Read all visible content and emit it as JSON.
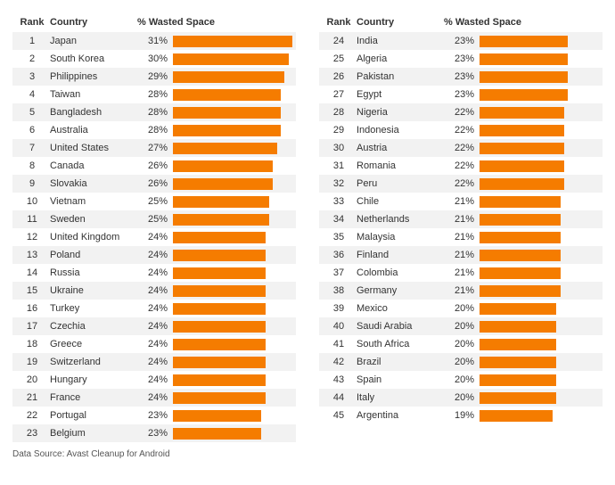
{
  "columns": {
    "rank": "Rank",
    "country": "Country",
    "pct": "% Wasted Space"
  },
  "bar_color": "#f57c00",
  "stripe_color": "#f2f2f2",
  "bar_max": 31,
  "left": [
    {
      "rank": 1,
      "country": "Japan",
      "pct": 31
    },
    {
      "rank": 2,
      "country": "South Korea",
      "pct": 30
    },
    {
      "rank": 3,
      "country": "Philippines",
      "pct": 29
    },
    {
      "rank": 4,
      "country": "Taiwan",
      "pct": 28
    },
    {
      "rank": 5,
      "country": "Bangladesh",
      "pct": 28
    },
    {
      "rank": 6,
      "country": "Australia",
      "pct": 28
    },
    {
      "rank": 7,
      "country": "United States",
      "pct": 27
    },
    {
      "rank": 8,
      "country": "Canada",
      "pct": 26
    },
    {
      "rank": 9,
      "country": "Slovakia",
      "pct": 26
    },
    {
      "rank": 10,
      "country": "Vietnam",
      "pct": 25
    },
    {
      "rank": 11,
      "country": "Sweden",
      "pct": 25
    },
    {
      "rank": 12,
      "country": "United Kingdom",
      "pct": 24
    },
    {
      "rank": 13,
      "country": "Poland",
      "pct": 24
    },
    {
      "rank": 14,
      "country": "Russia",
      "pct": 24
    },
    {
      "rank": 15,
      "country": "Ukraine",
      "pct": 24
    },
    {
      "rank": 16,
      "country": "Turkey",
      "pct": 24
    },
    {
      "rank": 17,
      "country": "Czechia",
      "pct": 24
    },
    {
      "rank": 18,
      "country": "Greece",
      "pct": 24
    },
    {
      "rank": 19,
      "country": "Switzerland",
      "pct": 24
    },
    {
      "rank": 20,
      "country": "Hungary",
      "pct": 24
    },
    {
      "rank": 21,
      "country": "France",
      "pct": 24
    },
    {
      "rank": 22,
      "country": "Portugal",
      "pct": 23
    },
    {
      "rank": 23,
      "country": "Belgium",
      "pct": 23
    }
  ],
  "right": [
    {
      "rank": 24,
      "country": "India",
      "pct": 23
    },
    {
      "rank": 25,
      "country": "Algeria",
      "pct": 23
    },
    {
      "rank": 26,
      "country": "Pakistan",
      "pct": 23
    },
    {
      "rank": 27,
      "country": "Egypt",
      "pct": 23
    },
    {
      "rank": 28,
      "country": "Nigeria",
      "pct": 22
    },
    {
      "rank": 29,
      "country": "Indonesia",
      "pct": 22
    },
    {
      "rank": 30,
      "country": "Austria",
      "pct": 22
    },
    {
      "rank": 31,
      "country": "Romania",
      "pct": 22
    },
    {
      "rank": 32,
      "country": "Peru",
      "pct": 22
    },
    {
      "rank": 33,
      "country": "Chile",
      "pct": 21
    },
    {
      "rank": 34,
      "country": "Netherlands",
      "pct": 21
    },
    {
      "rank": 35,
      "country": "Malaysia",
      "pct": 21
    },
    {
      "rank": 36,
      "country": "Finland",
      "pct": 21
    },
    {
      "rank": 37,
      "country": "Colombia",
      "pct": 21
    },
    {
      "rank": 38,
      "country": "Germany",
      "pct": 21
    },
    {
      "rank": 39,
      "country": "Mexico",
      "pct": 20
    },
    {
      "rank": 40,
      "country": "Saudi Arabia",
      "pct": 20
    },
    {
      "rank": 41,
      "country": "South Africa",
      "pct": 20
    },
    {
      "rank": 42,
      "country": "Brazil",
      "pct": 20
    },
    {
      "rank": 43,
      "country": "Spain",
      "pct": 20
    },
    {
      "rank": 44,
      "country": "Italy",
      "pct": 20
    },
    {
      "rank": 45,
      "country": "Argentina",
      "pct": 19
    }
  ],
  "source": "Data Source: Avast Cleanup for Android"
}
